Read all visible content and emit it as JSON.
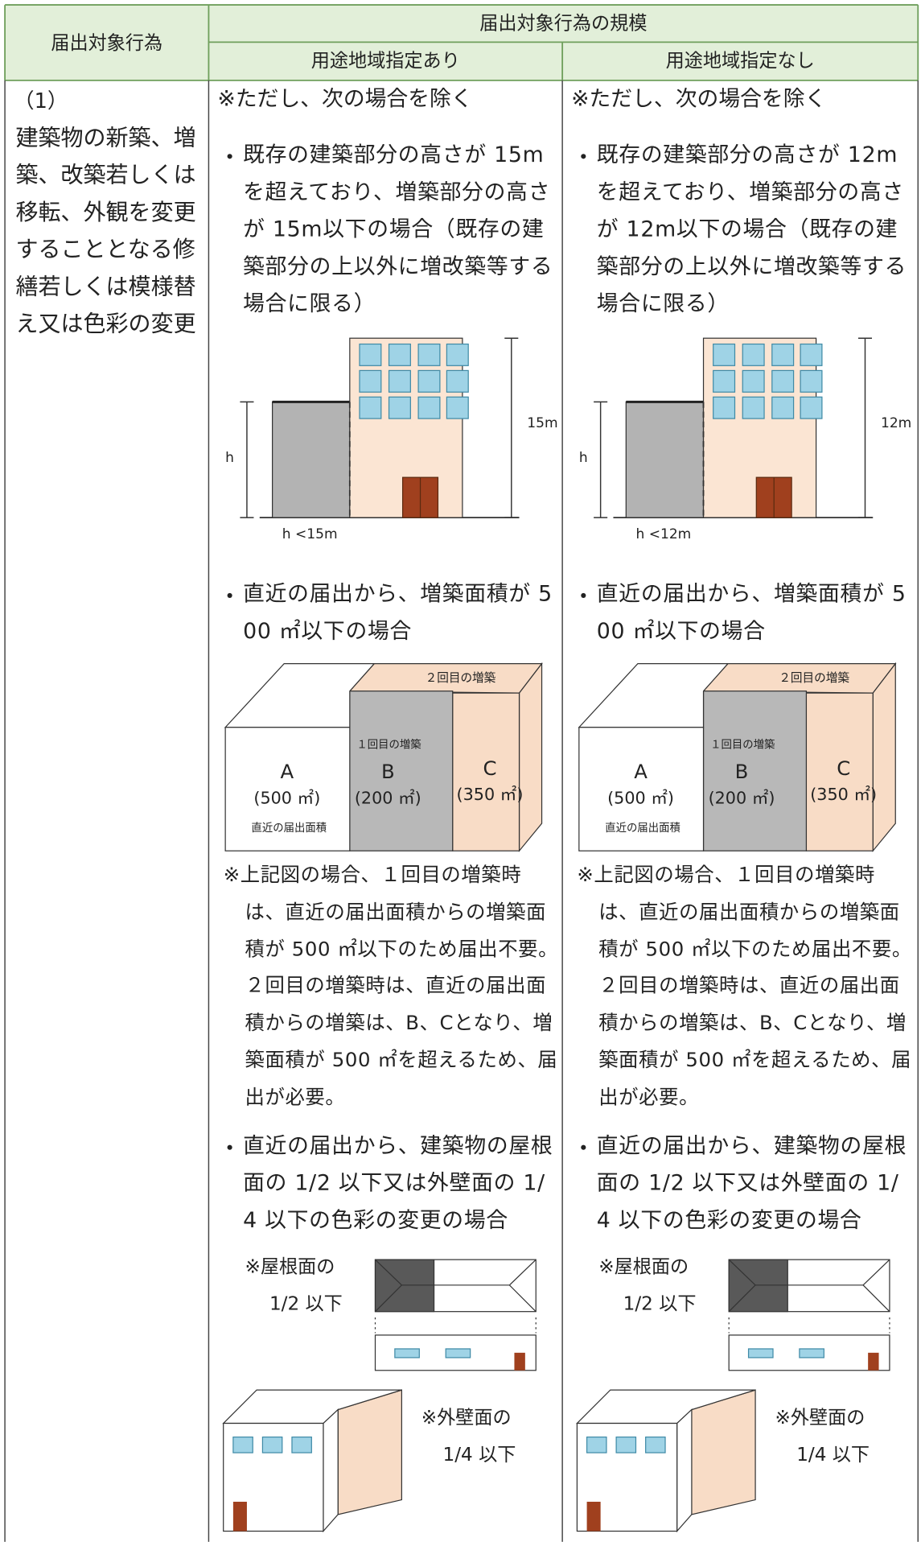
{
  "header": {
    "col1": "届出対象行為",
    "group": "届出対象行為の規模",
    "sub": [
      "用途地域指定あり",
      "用途地域指定なし"
    ]
  },
  "row": {
    "number": "（1）",
    "label": "建築物の新築、増築、改築若しくは移転、外観を変更することとなる修繕若しくは模様替え又は色彩の変更"
  },
  "columns": [
    {
      "note": "※ただし、次の場合を除く",
      "height_case": {
        "text": "既存の建築部分の高さが 15m を超えており、増築部分の高さが 15m以下の場合（既存の建築部分の上以外に増改築等する場合に限る）",
        "diagram": {
          "height": "15m",
          "h": "h",
          "condition": "h <15m"
        }
      },
      "area_case": {
        "text": "直近の届出から、増築面積が 500 ㎡以下の場合",
        "diagram": {
          "second": "２回目の増築",
          "first": "１回目の増築",
          "a": "A",
          "a_area": "(500 ㎡)",
          "a_note": "直近の届出面積",
          "b": "B",
          "b_area": "(200 ㎡)",
          "c": "C",
          "c_area": "(350 ㎡)"
        },
        "explanation": "※上記図の場合、１回目の増築時は、直近の届出面積からの増築面積が 500 ㎡以下のため届出不要。２回目の増築時は、直近の届出面積からの増築は、B、Cとなり、増築面積が 500 ㎡を超えるため、届出が必要。"
      },
      "color_case": {
        "text": "直近の届出から、建築物の屋根面の 1/2 以下又は外壁面の 1/4 以下の色彩の変更の場合",
        "roof_label": [
          "※屋根面の",
          "1/2 以下"
        ],
        "wall_label": [
          "※外壁面の",
          "1/4 以下"
        ]
      }
    },
    {
      "note": "※ただし、次の場合を除く",
      "height_case": {
        "text": "既存の建築部分の高さが 12m を超えており、増築部分の高さが 12m以下の場合（既存の建築部分の上以外に増改築等する場合に限る）",
        "diagram": {
          "height": "12m",
          "h": "h",
          "condition": "h <12m"
        }
      },
      "area_case": {
        "text": "直近の届出から、増築面積が 500 ㎡以下の場合",
        "diagram": {
          "second": "２回目の増築",
          "first": "１回目の増築",
          "a": "A",
          "a_area": "(500 ㎡)",
          "a_note": "直近の届出面積",
          "b": "B",
          "b_area": "(200 ㎡)",
          "c": "C",
          "c_area": "(350 ㎡)"
        },
        "explanation": "※上記図の場合、１回目の増築時は、直近の届出面積からの増築面積が 500 ㎡以下のため届出不要。２回目の増築時は、直近の届出面積からの増築は、B、Cとなり、増築面積が 500 ㎡を超えるため、届出が必要。"
      },
      "color_case": {
        "text": "直近の届出から、建築物の屋根面の 1/2 以下又は外壁面の 1/4 以下の色彩の変更の場合",
        "roof_label": [
          "※屋根面の",
          "1/2 以下"
        ],
        "wall_label": [
          "※外壁面の",
          "1/4 以下"
        ]
      }
    }
  ]
}
